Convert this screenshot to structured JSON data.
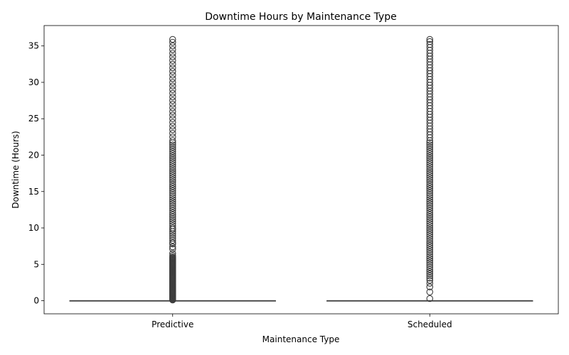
{
  "chart_data": {
    "type": "box",
    "title": "Downtime Hours by Maintenance Type",
    "xlabel": "Maintenance Type",
    "ylabel": "Downtime (Hours)",
    "categories": [
      "Predictive",
      "Scheduled"
    ],
    "ylim": [
      -1.8,
      37.8
    ],
    "yticks": [
      0,
      5,
      10,
      15,
      20,
      25,
      30,
      35
    ],
    "grid": false,
    "colors": {
      "box_line": "#3d3d3d",
      "outlier": "#3d3d3d"
    },
    "boxes": [
      {
        "category": "Predictive",
        "q1": 0,
        "median": 0,
        "q3": 0,
        "whisker_low": 0,
        "whisker_high": 0,
        "outliers": [
          0.1,
          0.2,
          0.3,
          0.4,
          0.5,
          0.6,
          0.7,
          0.8,
          0.9,
          1.0,
          1.1,
          1.2,
          1.3,
          1.4,
          1.5,
          1.6,
          1.7,
          1.8,
          1.9,
          2.0,
          2.1,
          2.2,
          2.3,
          2.4,
          2.5,
          2.6,
          2.7,
          2.8,
          2.9,
          3.0,
          3.1,
          3.2,
          3.3,
          3.4,
          3.5,
          3.6,
          3.7,
          3.8,
          3.9,
          4.0,
          4.1,
          4.2,
          4.3,
          4.4,
          4.5,
          4.6,
          4.7,
          4.8,
          4.9,
          5.0,
          5.1,
          5.2,
          5.3,
          5.4,
          5.5,
          5.6,
          5.7,
          5.8,
          5.9,
          6.0,
          6.2,
          6.5,
          7.1,
          7.4,
          7.8,
          8.0,
          8.3,
          8.6,
          8.9,
          9.2,
          9.5,
          9.8,
          10.0,
          10.3,
          10.6,
          10.9,
          11.2,
          11.5,
          11.8,
          12.1,
          12.4,
          12.7,
          13.0,
          13.3,
          13.6,
          13.9,
          14.2,
          14.5,
          14.8,
          15.1,
          15.4,
          15.7,
          16.0,
          16.3,
          16.6,
          16.9,
          17.2,
          17.5,
          17.8,
          18.1,
          18.4,
          18.7,
          19.0,
          19.3,
          19.6,
          19.9,
          20.2,
          20.5,
          20.8,
          21.1,
          21.4,
          21.7,
          22.0,
          22.5,
          23.0,
          23.5,
          24.0,
          24.5,
          25.0,
          25.5,
          26.0,
          26.5,
          27.0,
          27.5,
          28.0,
          28.5,
          29.0,
          29.5,
          30.0,
          30.5,
          31.0,
          31.5,
          32.0,
          32.5,
          33.0,
          33.5,
          34.0,
          34.5,
          35.0,
          35.5,
          35.9
        ]
      },
      {
        "category": "Scheduled",
        "q1": 0,
        "median": 0,
        "q3": 0,
        "whisker_low": 0,
        "whisker_high": 0,
        "outliers": [
          0.3,
          1.2,
          1.9,
          2.4,
          2.8,
          3.1,
          3.4,
          3.7,
          4.0,
          4.3,
          4.6,
          4.9,
          5.2,
          5.5,
          5.8,
          6.1,
          6.4,
          6.7,
          7.0,
          7.3,
          7.6,
          7.9,
          8.2,
          8.5,
          8.8,
          9.1,
          9.4,
          9.7,
          10.0,
          10.3,
          10.6,
          10.9,
          11.2,
          11.5,
          11.8,
          12.1,
          12.4,
          12.7,
          13.0,
          13.3,
          13.6,
          13.9,
          14.2,
          14.5,
          14.8,
          15.1,
          15.4,
          15.7,
          16.0,
          16.3,
          16.6,
          16.9,
          17.2,
          17.5,
          17.8,
          18.1,
          18.4,
          18.7,
          19.0,
          19.3,
          19.6,
          19.9,
          20.2,
          20.5,
          20.8,
          21.1,
          21.4,
          21.7,
          22.0,
          22.4,
          22.8,
          23.2,
          23.6,
          24.0,
          24.4,
          24.8,
          25.2,
          25.6,
          26.0,
          26.4,
          26.8,
          27.2,
          27.6,
          28.0,
          28.4,
          28.8,
          29.2,
          29.6,
          30.0,
          30.4,
          30.8,
          31.2,
          31.6,
          32.0,
          32.4,
          32.8,
          33.2,
          33.6,
          34.0,
          34.4,
          34.8,
          35.2,
          35.6,
          35.9
        ]
      }
    ]
  }
}
